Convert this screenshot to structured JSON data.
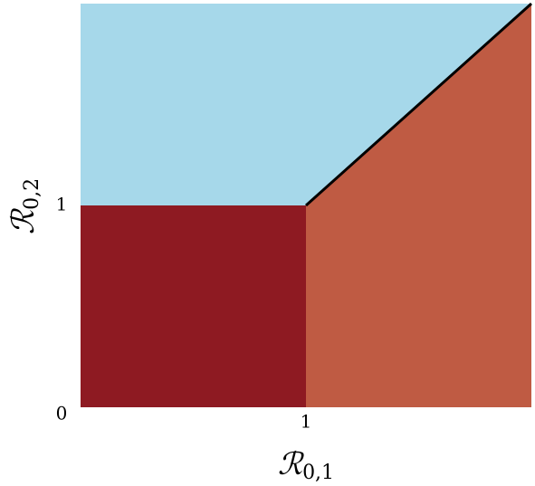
{
  "chart_data": {
    "type": "region",
    "x_label": {
      "symbol": "ℛ",
      "subscript": "0,1"
    },
    "y_label": {
      "symbol": "ℛ",
      "subscript": "0,2"
    },
    "xlim": [
      0,
      2
    ],
    "ylim": [
      0,
      2
    ],
    "xticks": [
      1
    ],
    "yticks": [
      0,
      1
    ],
    "regions": [
      {
        "color": "#a6d8ea",
        "x": [
          0,
          0,
          2,
          1
        ],
        "y": [
          1,
          2,
          2,
          1
        ]
      },
      {
        "color": "#8e1a22",
        "x": [
          0,
          1,
          1,
          0
        ],
        "y": [
          0,
          0,
          1,
          1
        ]
      },
      {
        "color": "#bf5b43",
        "x": [
          1,
          2,
          2,
          1
        ],
        "y": [
          0,
          0,
          2,
          1
        ]
      }
    ],
    "boundary": {
      "color": "#000000",
      "x": [
        1,
        2
      ],
      "y": [
        1,
        2
      ]
    }
  }
}
